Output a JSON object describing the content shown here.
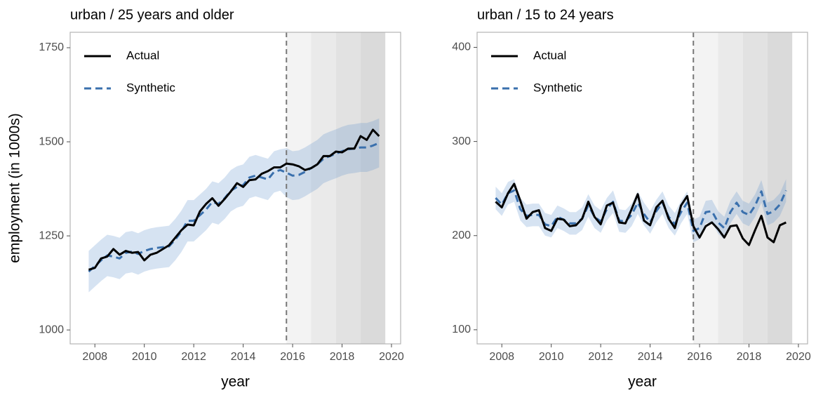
{
  "chart_data": [
    {
      "type": "line",
      "title": "urban / 25 years and older",
      "xlabel": "year",
      "ylabel": "employment (in 1000s)",
      "x": [
        2007.75,
        2008,
        2008.25,
        2008.5,
        2008.75,
        2009,
        2009.25,
        2009.5,
        2009.75,
        2010,
        2010.25,
        2010.5,
        2010.75,
        2011,
        2011.25,
        2011.5,
        2011.75,
        2012,
        2012.25,
        2012.5,
        2012.75,
        2013,
        2013.25,
        2013.5,
        2013.75,
        2014,
        2014.25,
        2014.5,
        2014.75,
        2015,
        2015.25,
        2015.5,
        2015.75,
        2016,
        2016.25,
        2016.5,
        2016.75,
        2017,
        2017.25,
        2017.5,
        2017.75,
        2018,
        2018.25,
        2018.5,
        2018.75,
        2019,
        2019.25,
        2019.5
      ],
      "series": [
        {
          "name": "Actual",
          "color": "#000000",
          "dashed": false,
          "values": [
            1160,
            1165,
            1190,
            1195,
            1215,
            1200,
            1210,
            1205,
            1207,
            1185,
            1200,
            1205,
            1215,
            1225,
            1245,
            1265,
            1280,
            1278,
            1315,
            1335,
            1350,
            1330,
            1348,
            1368,
            1390,
            1380,
            1398,
            1400,
            1415,
            1422,
            1432,
            1432,
            1442,
            1440,
            1435,
            1425,
            1430,
            1440,
            1462,
            1462,
            1474,
            1472,
            1482,
            1482,
            1515,
            1505,
            1532,
            1515
          ]
        },
        {
          "name": "Synthetic",
          "color": "#3a70ad",
          "dashed": true,
          "values": [
            1155,
            1170,
            1185,
            1198,
            1195,
            1190,
            1205,
            1208,
            1202,
            1210,
            1215,
            1218,
            1220,
            1222,
            1240,
            1262,
            1290,
            1290,
            1305,
            1320,
            1340,
            1335,
            1350,
            1370,
            1380,
            1385,
            1405,
            1410,
            1405,
            1400,
            1420,
            1425,
            1418,
            1410,
            1412,
            1420,
            1430,
            1440,
            1455,
            1462,
            1468,
            1475,
            1480,
            1482,
            1485,
            1485,
            1490,
            1497
          ]
        }
      ],
      "band": {
        "color": "#5b8fcc",
        "lower": [
          1100,
          1115,
          1130,
          1143,
          1140,
          1135,
          1150,
          1153,
          1147,
          1155,
          1160,
          1163,
          1165,
          1167,
          1185,
          1207,
          1235,
          1235,
          1250,
          1265,
          1285,
          1280,
          1295,
          1315,
          1325,
          1330,
          1350,
          1355,
          1350,
          1345,
          1365,
          1370,
          1353,
          1345,
          1347,
          1355,
          1365,
          1375,
          1390,
          1397,
          1403,
          1410,
          1415,
          1417,
          1420,
          1420,
          1425,
          1432
        ],
        "upper": [
          1210,
          1225,
          1240,
          1253,
          1250,
          1245,
          1260,
          1263,
          1257,
          1265,
          1270,
          1273,
          1275,
          1277,
          1295,
          1317,
          1345,
          1345,
          1360,
          1375,
          1395,
          1390,
          1405,
          1425,
          1435,
          1440,
          1460,
          1465,
          1460,
          1455,
          1475,
          1480,
          1483,
          1475,
          1477,
          1485,
          1495,
          1505,
          1520,
          1527,
          1533,
          1540,
          1545,
          1547,
          1550,
          1550,
          1555,
          1562
        ]
      },
      "vline": 2015.75,
      "regions": [
        {
          "start": 2015.75,
          "end": 2016.75,
          "color": "#f3f3f3"
        },
        {
          "start": 2016.75,
          "end": 2017.75,
          "color": "#eaeaea"
        },
        {
          "start": 2017.75,
          "end": 2018.75,
          "color": "#e2e2e2"
        },
        {
          "start": 2018.75,
          "end": 2019.75,
          "color": "#dadada"
        }
      ],
      "xlim": [
        2007.0,
        2020.37
      ],
      "ylim": [
        963,
        1791
      ],
      "xticks": [
        2008,
        2010,
        2012,
        2014,
        2016,
        2018,
        2020
      ],
      "yticks": [
        1000,
        1250,
        1500,
        1750
      ],
      "legend": "top-left"
    },
    {
      "type": "line",
      "title": "urban / 15 to 24 years",
      "xlabel": "year",
      "x": [
        2007.75,
        2008,
        2008.25,
        2008.5,
        2008.75,
        2009,
        2009.25,
        2009.5,
        2009.75,
        2010,
        2010.25,
        2010.5,
        2010.75,
        2011,
        2011.25,
        2011.5,
        2011.75,
        2012,
        2012.25,
        2012.5,
        2012.75,
        2013,
        2013.25,
        2013.5,
        2013.75,
        2014,
        2014.25,
        2014.5,
        2014.75,
        2015,
        2015.25,
        2015.5,
        2015.75,
        2016,
        2016.25,
        2016.5,
        2016.75,
        2017,
        2017.25,
        2017.5,
        2017.75,
        2018,
        2018.25,
        2018.5,
        2018.75,
        2019,
        2019.25,
        2019.5
      ],
      "series": [
        {
          "name": "Actual",
          "color": "#000000",
          "dashed": false,
          "values": [
            236,
            230,
            245,
            255,
            237,
            218,
            225,
            227,
            208,
            205,
            218,
            217,
            210,
            211,
            218,
            236,
            220,
            212,
            232,
            235,
            214,
            213,
            228,
            244,
            216,
            211,
            230,
            237,
            218,
            208,
            232,
            242,
            210,
            198,
            210,
            214,
            207,
            198,
            210,
            211,
            197,
            190,
            206,
            221,
            198,
            193,
            211,
            214
          ]
        },
        {
          "name": "Synthetic",
          "color": "#3a70ad",
          "dashed": true,
          "values": [
            240,
            233,
            245,
            248,
            228,
            221,
            222,
            222,
            212,
            210,
            220,
            217,
            213,
            213,
            218,
            232,
            220,
            215,
            228,
            236,
            216,
            215,
            222,
            235,
            223,
            214,
            226,
            235,
            220,
            212,
            225,
            235,
            205,
            208,
            225,
            226,
            214,
            208,
            225,
            235,
            225,
            222,
            232,
            247,
            223,
            226,
            233,
            248
          ]
        }
      ],
      "band": {
        "color": "#5b8fcc",
        "lower": [
          228,
          221,
          233,
          236,
          216,
          209,
          210,
          210,
          200,
          198,
          208,
          205,
          201,
          201,
          206,
          220,
          208,
          203,
          216,
          224,
          204,
          203,
          210,
          223,
          211,
          202,
          214,
          223,
          208,
          200,
          213,
          223,
          193,
          196,
          213,
          214,
          202,
          196,
          213,
          223,
          213,
          210,
          220,
          235,
          211,
          214,
          221,
          236
        ],
        "upper": [
          252,
          245,
          257,
          260,
          240,
          233,
          234,
          234,
          224,
          222,
          232,
          229,
          225,
          225,
          230,
          244,
          232,
          227,
          240,
          248,
          228,
          227,
          234,
          247,
          235,
          226,
          238,
          247,
          232,
          224,
          237,
          247,
          217,
          220,
          237,
          238,
          226,
          220,
          237,
          247,
          237,
          234,
          244,
          259,
          235,
          238,
          245,
          260
        ]
      },
      "vline": 2015.75,
      "regions": [
        {
          "start": 2015.75,
          "end": 2016.75,
          "color": "#f3f3f3"
        },
        {
          "start": 2016.75,
          "end": 2017.75,
          "color": "#eaeaea"
        },
        {
          "start": 2017.75,
          "end": 2018.75,
          "color": "#e2e2e2"
        },
        {
          "start": 2018.75,
          "end": 2019.75,
          "color": "#dadada"
        }
      ],
      "xlim": [
        2007.0,
        2020.37
      ],
      "ylim": [
        85,
        416
      ],
      "xticks": [
        2008,
        2010,
        2012,
        2014,
        2016,
        2018,
        2020
      ],
      "yticks": [
        100,
        200,
        300,
        400
      ],
      "legend": "top-left"
    }
  ]
}
